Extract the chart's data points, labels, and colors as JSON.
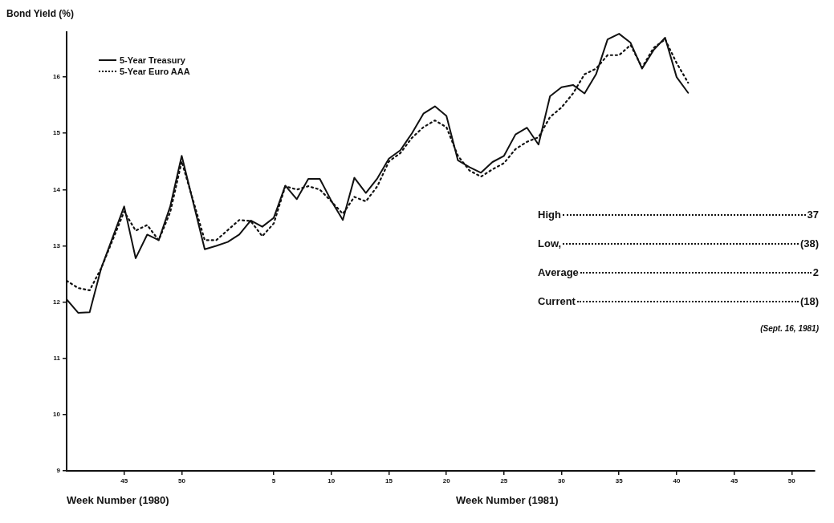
{
  "chart_data": {
    "type": "line",
    "ylabel": "Bond Yield (%)",
    "xlabel": "Week Number (1980)",
    "x": [
      "1980-09-30",
      "1980-10-07",
      "1980-10-14",
      "1980-10-21",
      "1980-11-04",
      "1980-11-11",
      "1980-11-18",
      "1980-11-25",
      "1980-12-02",
      "1980-12-09",
      "1980-12-23",
      "1980-12-30",
      "1981-01-06",
      "1981-01-13",
      "1981-01-20",
      "1981-01-27",
      "1981-02-03",
      "1981-02-10",
      "1981-02-17",
      "1981-02-24",
      "1981-03-03",
      "1981-03-10",
      "1981-03-17",
      "1981-03-24",
      "1981-03-31",
      "1981-04-07",
      "1981-04-14",
      "1981-04-21",
      "1981-04-28",
      "1981-05-05",
      "1981-05-12",
      "1981-05-19",
      "1981-05-26",
      "1981-06-02",
      "1981-06-09",
      "1981-06-16",
      "1981-06-23",
      "1981-06-30",
      "1981-07-07",
      "1981-07-14",
      "1981-07-21",
      "1981-07-28",
      "1981-08-04",
      "1981-08-11",
      "1981-08-18",
      "1981-08-25",
      "1981-09-01",
      "1981-09-08",
      "1981-09-15",
      "1981-09-22",
      "1981-09-29",
      "1981-10-06",
      "1981-10-13"
    ],
    "xlim": [
      "1980-09-30",
      "1981-12-29"
    ],
    "xticks": [
      {
        "value": "1980-11-04",
        "label": "45"
      },
      {
        "value": "1980-12-09",
        "label": "50"
      },
      {
        "value": "1981-02-03",
        "label": "5"
      },
      {
        "value": "1981-03-10",
        "label": "10"
      },
      {
        "value": "1981-04-14",
        "label": "15"
      },
      {
        "value": "1981-05-19",
        "label": "20"
      },
      {
        "value": "1981-06-23",
        "label": "25"
      },
      {
        "value": "1981-07-28",
        "label": "30"
      },
      {
        "value": "1981-09-01",
        "label": "35"
      },
      {
        "value": "1981-10-06",
        "label": "40"
      },
      {
        "value": "1981-11-10",
        "label": "45"
      },
      {
        "value": "1981-12-15",
        "label": "50"
      }
    ],
    "ylim": [
      9,
      16.8
    ],
    "yticks": [
      9,
      10,
      11,
      12,
      13,
      14,
      15,
      16
    ],
    "grid": false,
    "legend": "top left",
    "marker": "none",
    "series": [
      {
        "name": "5-Year Treasury",
        "color": "#111111",
        "line_style": "solid",
        "values": [
          12.05,
          11.81,
          11.82,
          12.6,
          13.7,
          12.78,
          13.2,
          13.1,
          13.7,
          14.6,
          12.94,
          13.0,
          13.07,
          13.2,
          13.45,
          13.34,
          13.5,
          14.07,
          13.83,
          14.19,
          14.19,
          13.8,
          13.46,
          14.21,
          13.94,
          14.2,
          14.55,
          14.7,
          15.0,
          15.35,
          15.48,
          15.31,
          14.52,
          14.4,
          14.3,
          14.49,
          14.6,
          14.98,
          15.1,
          14.8,
          15.66,
          15.82,
          15.86,
          15.71,
          16.05,
          16.67,
          16.77,
          16.61,
          16.15,
          16.48,
          16.7,
          16.0,
          15.72
        ]
      },
      {
        "name": "5-Year Euro AAA",
        "color": "#111111",
        "line_style": "dotted",
        "values": [
          12.38,
          12.25,
          12.21,
          12.6,
          13.61,
          13.27,
          13.37,
          13.1,
          13.6,
          14.5,
          13.1,
          13.1,
          13.28,
          13.46,
          13.44,
          13.17,
          13.4,
          14.06,
          14.0,
          14.06,
          14.0,
          13.79,
          13.57,
          13.87,
          13.79,
          14.06,
          14.5,
          14.65,
          14.92,
          15.11,
          15.23,
          15.11,
          14.6,
          14.34,
          14.23,
          14.36,
          14.47,
          14.72,
          14.85,
          14.93,
          15.29,
          15.46,
          15.71,
          16.05,
          16.15,
          16.39,
          16.39,
          16.57,
          16.17,
          16.52,
          16.67,
          16.25,
          15.9
        ]
      }
    ],
    "annotations": [
      "Week Number (1981)",
      "High",
      "37",
      "Low,",
      "(38)",
      "Average",
      "2",
      "Current",
      "(18)",
      "(Sept. 16, 1981)"
    ]
  }
}
